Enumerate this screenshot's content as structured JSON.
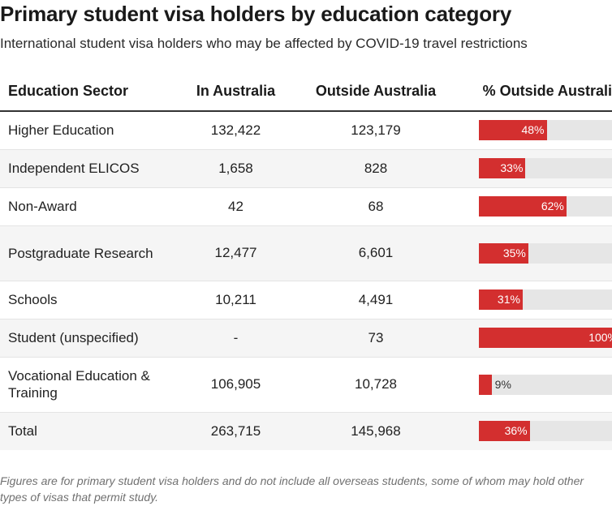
{
  "title": "Primary student visa holders by education category",
  "subtitle": "International student visa holders who may be affected by COVID-19 travel restrictions",
  "footnote": "Figures are for primary student visa holders and do not include all overseas students, some of whom may hold other types of visas that permit study.",
  "colors": {
    "bar": "#d32f2f",
    "track": "#e6e6e6"
  },
  "chart_data": {
    "type": "table",
    "title": "Primary student visa holders by education category",
    "subtitle": "International student visa holders who may be affected by COVID-19 travel restrictions",
    "columns": [
      "Education Sector",
      "In Australia",
      "Outside Australia",
      "% Outside Australia"
    ],
    "rows": [
      {
        "sector": "Higher Education",
        "in_australia": "132,422",
        "outside_australia": "123,179",
        "pct_outside": 48,
        "pct_label": "48%"
      },
      {
        "sector": "Independent ELICOS",
        "in_australia": "1,658",
        "outside_australia": "828",
        "pct_outside": 33,
        "pct_label": "33%"
      },
      {
        "sector": "Non-Award",
        "in_australia": "42",
        "outside_australia": "68",
        "pct_outside": 62,
        "pct_label": "62%"
      },
      {
        "sector": "Postgraduate Research",
        "in_australia": "12,477",
        "outside_australia": "6,601",
        "pct_outside": 35,
        "pct_label": "35%"
      },
      {
        "sector": "Schools",
        "in_australia": "10,211",
        "outside_australia": "4,491",
        "pct_outside": 31,
        "pct_label": "31%"
      },
      {
        "sector": "Student (unspecified)",
        "in_australia": "-",
        "outside_australia": "73",
        "pct_outside": 100,
        "pct_label": "100%"
      },
      {
        "sector": "Vocational Education & Training",
        "in_australia": "106,905",
        "outside_australia": "10,728",
        "pct_outside": 9,
        "pct_label": "9%"
      },
      {
        "sector": "Total",
        "in_australia": "263,715",
        "outside_australia": "145,968",
        "pct_outside": 36,
        "pct_label": "36%"
      }
    ],
    "bar_range": [
      0,
      100
    ]
  }
}
